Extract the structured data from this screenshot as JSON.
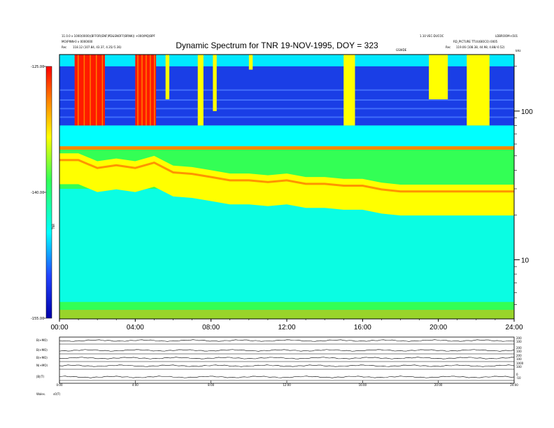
{
  "header": {
    "left_line1": "11.0.0 x 1000(0000)(BFFOR(ENF)PD&SNOFF(BRNK)) +000/MQ(BPF",
    "left_line2": "MO(PINN-0 x 0000000",
    "left_line3": "Rec",
    "left_line3_values": "118.12 (107.84, 43.37, 4.35/-5.36)",
    "right_line1": "1.10 VEC-DUCOC",
    "right_line1b": "LDBROOM-n501",
    "right_line2": "RD_PICTURE TTUU(BOCO) 0005",
    "right_line3": "Rec",
    "right_line3_values": "119.06 (108.38, 44.98, 4.88/-0.52)",
    "mid_label": "GSWDE",
    "khz_label": "kHz"
  },
  "chart_data": {
    "type": "heatmap",
    "title": "Dynamic Spectrum for TNR 19-NOV-1995, DOY = 323",
    "colorbar": {
      "label": "TNR",
      "ticks": [
        "-125.00",
        "-140.00",
        "-155.00"
      ],
      "min": -155.0,
      "max": -125.0,
      "scale_colors": [
        "#0000aa",
        "#2244ff",
        "#00ffff",
        "#33ff55",
        "#ffff00",
        "#ff8800",
        "#ff0000"
      ]
    },
    "x_axis": {
      "ticks": [
        "00:00",
        "04:00",
        "08:00",
        "12:00",
        "16:00",
        "20:00",
        "24:00"
      ],
      "range_hours": [
        0,
        24
      ]
    },
    "y_axis": {
      "scale": "log",
      "unit": "kHz",
      "ticks": [
        "100",
        "10"
      ],
      "range": [
        4,
        240
      ]
    },
    "bands": [
      {
        "name": "low-frequency yellow band",
        "freq_kHz": [
          4,
          5.2
        ],
        "level_dB": -139
      },
      {
        "name": "green background",
        "freq_kHz": [
          5.2,
          35
        ],
        "level_dB": -147
      },
      {
        "name": "plasma line (yellow)",
        "freq_kHz": [
          30,
          60
        ],
        "level_dB": -138
      },
      {
        "name": "upper cyan",
        "freq_kHz": [
          55,
          180
        ],
        "level_dB": -132
      }
    ],
    "plasma_line_kHz": [
      [
        0,
        52
      ],
      [
        1,
        52
      ],
      [
        2,
        46
      ],
      [
        3,
        48
      ],
      [
        4,
        46
      ],
      [
        5,
        50
      ],
      [
        6,
        43
      ],
      [
        7,
        42
      ],
      [
        8,
        40
      ],
      [
        9,
        38
      ],
      [
        10,
        38
      ],
      [
        11,
        37
      ],
      [
        12,
        38
      ],
      [
        13,
        36
      ],
      [
        14,
        36
      ],
      [
        15,
        35
      ],
      [
        16,
        35
      ],
      [
        17,
        33
      ],
      [
        18,
        32
      ],
      [
        19,
        32
      ],
      [
        20,
        32
      ],
      [
        21,
        32
      ],
      [
        22,
        32
      ],
      [
        23,
        32
      ],
      [
        24,
        32
      ]
    ],
    "bursts": [
      {
        "t_start": 0.8,
        "t_end": 2.4,
        "freq_kHz": [
          80,
          240
        ],
        "level": "red"
      },
      {
        "t_start": 4.0,
        "t_end": 5.1,
        "freq_kHz": [
          80,
          240
        ],
        "level": "red"
      },
      {
        "t_start": 5.6,
        "t_end": 5.8,
        "freq_kHz": [
          120,
          240
        ],
        "level": "yellow"
      },
      {
        "t_start": 7.3,
        "t_end": 7.6,
        "freq_kHz": [
          80,
          240
        ],
        "level": "yellow"
      },
      {
        "t_start": 8.1,
        "t_end": 8.3,
        "freq_kHz": [
          100,
          240
        ],
        "level": "yellow"
      },
      {
        "t_start": 10.0,
        "t_end": 10.2,
        "freq_kHz": [
          190,
          240
        ],
        "level": "yellow"
      },
      {
        "t_start": 15.0,
        "t_end": 15.6,
        "freq_kHz": [
          80,
          240
        ],
        "level": "yellow"
      },
      {
        "t_start": 19.5,
        "t_end": 20.5,
        "freq_kHz": [
          120,
          240
        ],
        "level": "yellow"
      },
      {
        "t_start": 21.5,
        "t_end": 22.7,
        "freq_kHz": [
          80,
          240
        ],
        "level": "yellow"
      }
    ]
  },
  "panels": {
    "labels": [
      "B(+MO)",
      "B(+MO)",
      "B(+MO)",
      "N(+MO)",
      "|B|(T)"
    ],
    "right_ticks": [
      [
        "200",
        "100"
      ],
      [
        "200",
        "100"
      ],
      [
        "200",
        "100"
      ],
      [
        "1000",
        "100"
      ],
      [
        "0",
        "-10"
      ]
    ],
    "bottom_ticks": [
      "0:00",
      "4:00",
      "8:00",
      "12:00",
      "16:00",
      "20:00",
      "24:00"
    ],
    "footer_label": "Wales.",
    "footer_sub": "s0(T)"
  }
}
